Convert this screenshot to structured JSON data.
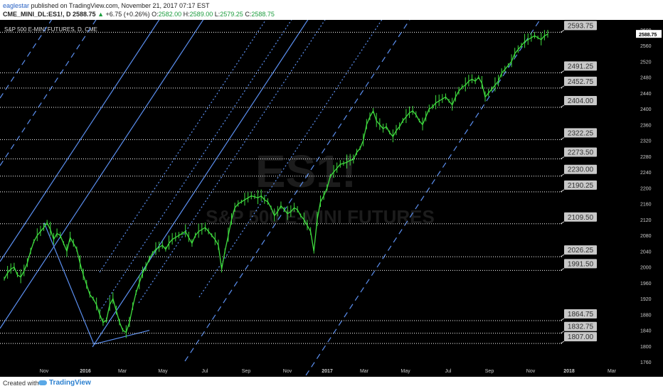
{
  "header": {
    "author": "eaglestar",
    "published": "published on TradingView.com, November 21, 2017 07:17 EST",
    "symbol": "CME_MINI_DL:ES1!, D",
    "last": "2588.75",
    "change": "+6.75 (+0.26%)",
    "ohlc": {
      "o_label": "O:",
      "o": "2582.00",
      "h_label": "H:",
      "h": "2589.00",
      "l_label": "L:",
      "l": "2579.25",
      "c_label": "C:",
      "c": "2588.75"
    }
  },
  "footer": {
    "created_with": "Created with",
    "brand": "TradingView"
  },
  "colors": {
    "background": "#000000",
    "price": "#3fdc3f",
    "channel": "#5b8ff0",
    "grid_dotted": "#ffffff",
    "label_bg": "#c8c8c8",
    "axis_text": "#cccccc"
  },
  "chart_data": {
    "type": "line",
    "title": "S&P 500 E-MINI FUTURES, D, CME",
    "watermark": "ES1!",
    "watermark_sub": "S&P 500 E-MINI FUTURES",
    "x_ticks": [
      "Nov",
      "2016",
      "Mar",
      "May",
      "Jul",
      "Sep",
      "Nov",
      "2017",
      "Mar",
      "May",
      "Jul",
      "Sep",
      "Nov",
      "2018",
      "Mar"
    ],
    "y_ticks": [
      1760,
      1800,
      1840,
      1880,
      1920,
      1960,
      2000,
      2040,
      2080,
      2120,
      2160,
      2200,
      2240,
      2280,
      2320,
      2360,
      2400,
      2440,
      2480,
      2520,
      2560,
      2600
    ],
    "ylim": [
      1755,
      2625
    ],
    "last_price_label": "2588.75",
    "levels": [
      2593.75,
      2491.25,
      2452.75,
      2404.0,
      2322.25,
      2273.5,
      2230.0,
      2190.25,
      2109.5,
      2026.25,
      1991.5,
      1864.75,
      1832.75,
      1807.0
    ],
    "level_labels": [
      "2593.75",
      "2491.25",
      "2452.75",
      "2404.00",
      "2322.25",
      "2273.50",
      "2230.00",
      "2190.25",
      "2109.50",
      "2026.25",
      "1991.50",
      "1864.75",
      "1832.75",
      "1807.00"
    ],
    "series": [
      {
        "values": [
          [
            0,
            1970
          ],
          [
            1,
            1985
          ],
          [
            2,
            1995
          ],
          [
            3,
            2000
          ],
          [
            4,
            1980
          ],
          [
            5,
            1975
          ],
          [
            6,
            1990
          ],
          [
            7,
            2010
          ],
          [
            8,
            2040
          ],
          [
            9,
            2065
          ],
          [
            10,
            2080
          ],
          [
            11,
            2090
          ],
          [
            12,
            2100
          ],
          [
            13,
            2112
          ],
          [
            14,
            2095
          ],
          [
            15,
            2070
          ],
          [
            16,
            2085
          ],
          [
            17,
            2080
          ],
          [
            18,
            2060
          ],
          [
            19,
            2040
          ],
          [
            20,
            2075
          ],
          [
            21,
            2060
          ],
          [
            22,
            2045
          ],
          [
            23,
            2010
          ],
          [
            24,
            1980
          ],
          [
            25,
            1955
          ],
          [
            26,
            1930
          ],
          [
            27,
            1920
          ],
          [
            28,
            1905
          ],
          [
            29,
            1880
          ],
          [
            30,
            1860
          ],
          [
            31,
            1865
          ],
          [
            32,
            1905
          ],
          [
            33,
            1920
          ],
          [
            34,
            1890
          ],
          [
            35,
            1860
          ],
          [
            36,
            1840
          ],
          [
            37,
            1835
          ],
          [
            38,
            1860
          ],
          [
            39,
            1900
          ],
          [
            40,
            1935
          ],
          [
            41,
            1960
          ],
          [
            42,
            1985
          ],
          [
            43,
            2000
          ],
          [
            44,
            2020
          ],
          [
            45,
            2035
          ],
          [
            46,
            2045
          ],
          [
            47,
            2050
          ],
          [
            48,
            2055
          ],
          [
            49,
            2045
          ],
          [
            50,
            2060
          ],
          [
            51,
            2070
          ],
          [
            52,
            2075
          ],
          [
            53,
            2080
          ],
          [
            54,
            2085
          ],
          [
            55,
            2090
          ],
          [
            56,
            2075
          ],
          [
            57,
            2060
          ],
          [
            58,
            2080
          ],
          [
            59,
            2090
          ],
          [
            60,
            2095
          ],
          [
            61,
            2100
          ],
          [
            62,
            2090
          ],
          [
            63,
            2080
          ],
          [
            64,
            2070
          ],
          [
            65,
            2055
          ],
          [
            66,
            1995
          ],
          [
            67,
            2040
          ],
          [
            68,
            2080
          ],
          [
            69,
            2120
          ],
          [
            70,
            2150
          ],
          [
            71,
            2160
          ],
          [
            72,
            2165
          ],
          [
            73,
            2170
          ],
          [
            74,
            2175
          ],
          [
            75,
            2180
          ],
          [
            76,
            2178
          ],
          [
            77,
            2175
          ],
          [
            78,
            2180
          ],
          [
            79,
            2170
          ],
          [
            80,
            2165
          ],
          [
            81,
            2150
          ],
          [
            82,
            2130
          ],
          [
            83,
            2140
          ],
          [
            84,
            2155
          ],
          [
            85,
            2145
          ],
          [
            86,
            2135
          ],
          [
            87,
            2140
          ],
          [
            88,
            2150
          ],
          [
            89,
            2145
          ],
          [
            90,
            2130
          ],
          [
            91,
            2120
          ],
          [
            92,
            2105
          ],
          [
            93,
            2090
          ],
          [
            94,
            2040
          ],
          [
            95,
            2120
          ],
          [
            96,
            2165
          ],
          [
            97,
            2180
          ],
          [
            98,
            2200
          ],
          [
            99,
            2230
          ],
          [
            100,
            2240
          ],
          [
            101,
            2250
          ],
          [
            102,
            2260
          ],
          [
            103,
            2262
          ],
          [
            104,
            2265
          ],
          [
            105,
            2270
          ],
          [
            106,
            2272
          ],
          [
            107,
            2290
          ],
          [
            108,
            2300
          ],
          [
            109,
            2320
          ],
          [
            110,
            2360
          ],
          [
            111,
            2380
          ],
          [
            112,
            2395
          ],
          [
            113,
            2370
          ],
          [
            114,
            2360
          ],
          [
            115,
            2350
          ],
          [
            116,
            2355
          ],
          [
            117,
            2340
          ],
          [
            118,
            2330
          ],
          [
            119,
            2345
          ],
          [
            120,
            2355
          ],
          [
            121,
            2370
          ],
          [
            122,
            2380
          ],
          [
            123,
            2390
          ],
          [
            124,
            2395
          ],
          [
            125,
            2385
          ],
          [
            126,
            2370
          ],
          [
            127,
            2360
          ],
          [
            128,
            2380
          ],
          [
            129,
            2400
          ],
          [
            130,
            2405
          ],
          [
            131,
            2415
          ],
          [
            132,
            2420
          ],
          [
            133,
            2425
          ],
          [
            134,
            2430
          ],
          [
            135,
            2420
          ],
          [
            136,
            2410
          ],
          [
            137,
            2430
          ],
          [
            138,
            2445
          ],
          [
            139,
            2455
          ],
          [
            140,
            2460
          ],
          [
            141,
            2470
          ],
          [
            142,
            2475
          ],
          [
            143,
            2470
          ],
          [
            144,
            2480
          ],
          [
            145,
            2465
          ],
          [
            146,
            2430
          ],
          [
            147,
            2440
          ],
          [
            148,
            2450
          ],
          [
            149,
            2460
          ],
          [
            150,
            2470
          ],
          [
            151,
            2490
          ],
          [
            152,
            2500
          ],
          [
            153,
            2510
          ],
          [
            154,
            2520
          ],
          [
            155,
            2540
          ],
          [
            156,
            2550
          ],
          [
            157,
            2560
          ],
          [
            158,
            2570
          ],
          [
            159,
            2575
          ],
          [
            160,
            2580
          ],
          [
            161,
            2585
          ],
          [
            162,
            2580
          ],
          [
            163,
            2575
          ],
          [
            164,
            2585
          ],
          [
            165,
            2589
          ]
        ]
      }
    ]
  }
}
